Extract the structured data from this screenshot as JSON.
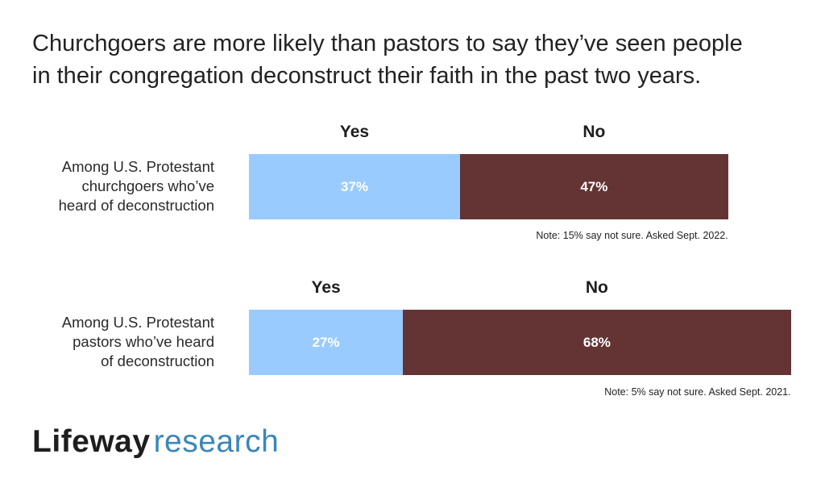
{
  "title_lines": [
    "Churchgoers are more likely than pastors to say they’ve seen people",
    "in their congregation deconstruct their faith in the past two years."
  ],
  "chart_data": {
    "type": "bar",
    "orientation": "horizontal",
    "stacked": true,
    "title": "Churchgoers are more likely than pastors to say they’ve seen people in their congregation deconstruct their faith in the past two years.",
    "categories": [
      "Among U.S. Protestant churchgoers who’ve heard of deconstruction",
      "Among U.S. Protestant pastors who’ve heard of deconstruction"
    ],
    "series": [
      {
        "name": "Yes",
        "values": [
          37,
          27
        ],
        "labels": [
          "37%",
          "27%"
        ]
      },
      {
        "name": "No",
        "values": [
          47,
          68
        ],
        "labels": [
          "47%",
          "68%"
        ]
      }
    ],
    "xlim": [
      0,
      100
    ],
    "grid": false
  },
  "rows": [
    {
      "label_lines": [
        "Among U.S. Protestant",
        "churchgoers who’ve",
        "heard of deconstruction"
      ],
      "yes_head": "Yes",
      "no_head": "No",
      "note": "Note: 15% say not sure. Asked Sept. 2022."
    },
    {
      "label_lines": [
        "Among U.S. Protestant",
        "pastors who’ve heard",
        "of deconstruction"
      ],
      "yes_head": "Yes",
      "no_head": "No",
      "note": "Note: 5% say not sure. Asked Sept. 2021."
    }
  ],
  "colors": {
    "yes": "#99cbff",
    "no": "#643434"
  },
  "logo": {
    "brand": "Lifeway",
    "product": "research"
  }
}
